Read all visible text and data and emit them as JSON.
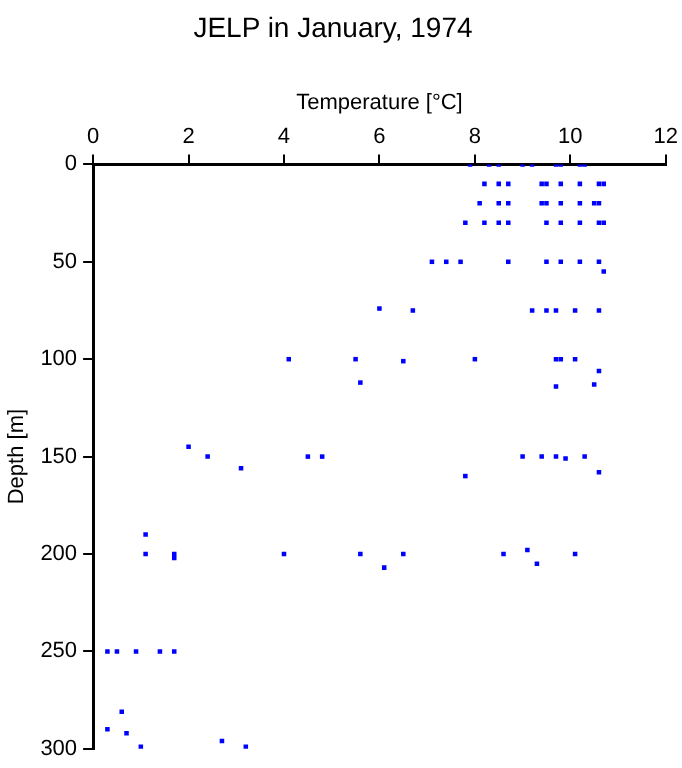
{
  "chart_data": {
    "type": "scatter",
    "title": "JELP in January, 1974",
    "xlabel": "Temperature [°C]",
    "ylabel": "Depth [m]",
    "xlim": [
      0,
      12
    ],
    "xticks": [
      0,
      2,
      4,
      6,
      8,
      10,
      12
    ],
    "ylim": [
      300,
      0
    ],
    "yticks": [
      0,
      50,
      100,
      150,
      200,
      250,
      300
    ],
    "grid": false,
    "legend": false,
    "marker": "square",
    "series": [
      {
        "color": "#0000ff",
        "x": [
          7.9,
          8.3,
          8.5,
          9.0,
          9.2,
          9.7,
          9.8,
          10.2,
          10.3,
          8.2,
          8.5,
          8.7,
          9.4,
          9.5,
          9.8,
          10.2,
          10.6,
          10.7,
          8.1,
          8.5,
          8.7,
          9.4,
          9.5,
          9.8,
          10.2,
          10.5,
          10.6,
          7.8,
          8.2,
          8.5,
          8.7,
          9.5,
          9.8,
          10.2,
          10.6,
          10.7,
          7.1,
          7.4,
          7.7,
          8.7,
          9.5,
          9.8,
          10.2,
          10.6,
          10.7,
          6.0,
          6.7,
          9.2,
          9.5,
          9.7,
          10.1,
          10.6,
          4.1,
          5.5,
          6.5,
          8.0,
          9.7,
          9.8,
          10.1,
          10.6,
          5.6,
          9.7,
          10.5,
          2.0,
          2.4,
          4.5,
          4.8,
          9.0,
          9.4,
          9.7,
          9.9,
          10.3,
          3.1,
          7.8,
          10.6,
          1.1,
          1.1,
          1.7,
          1.7,
          4.0,
          5.6,
          6.1,
          6.5,
          8.6,
          9.1,
          9.3,
          10.1,
          0.3,
          0.5,
          0.9,
          1.4,
          1.7,
          0.6,
          0.3,
          0.7,
          1.0,
          3.2,
          2.7
        ],
        "values": [
          0,
          0,
          0,
          0,
          0,
          0,
          0,
          0,
          0,
          10,
          10,
          10,
          10,
          10,
          10,
          10,
          10,
          10,
          20,
          20,
          20,
          20,
          20,
          20,
          20,
          20,
          20,
          30,
          30,
          30,
          30,
          30,
          30,
          30,
          30,
          30,
          50,
          50,
          50,
          50,
          50,
          50,
          50,
          50,
          55,
          74,
          75,
          75,
          75,
          75,
          75,
          75,
          100,
          100,
          101,
          100,
          100,
          100,
          100,
          106,
          112,
          114,
          113,
          145,
          150,
          150,
          150,
          150,
          150,
          150,
          151,
          150,
          156,
          160,
          158,
          190,
          200,
          200,
          202,
          200,
          200,
          207,
          200,
          200,
          198,
          205,
          200,
          250,
          250,
          250,
          250,
          250,
          281,
          290,
          292,
          299,
          299,
          296
        ]
      }
    ]
  }
}
